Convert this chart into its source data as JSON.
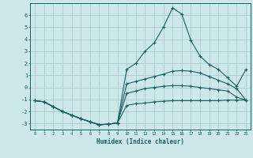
{
  "bg_color": "#cce8e8",
  "grid_color": "#aacccc",
  "line_color": "#1a6060",
  "xlabel": "Humidex (Indice chaleur)",
  "xlim": [
    -0.5,
    23.5
  ],
  "ylim": [
    -3.5,
    7.0
  ],
  "yticks": [
    -3,
    -2,
    -1,
    0,
    1,
    2,
    3,
    4,
    5,
    6
  ],
  "xticks": [
    0,
    1,
    2,
    3,
    4,
    5,
    6,
    7,
    8,
    9,
    10,
    11,
    12,
    13,
    14,
    15,
    16,
    17,
    18,
    19,
    20,
    21,
    22,
    23
  ],
  "curve1_x": [
    0,
    1,
    2,
    3,
    4,
    5,
    6,
    7,
    8,
    9,
    10,
    11,
    12,
    13,
    14,
    15,
    16,
    17,
    18,
    19,
    20,
    21,
    22,
    23
  ],
  "curve1_y": [
    -1.1,
    -1.2,
    -1.6,
    -2.0,
    -2.3,
    -2.6,
    -2.85,
    -3.1,
    -3.05,
    -2.95,
    -1.5,
    -1.35,
    -1.3,
    -1.2,
    -1.15,
    -1.1,
    -1.1,
    -1.1,
    -1.1,
    -1.1,
    -1.1,
    -1.05,
    -1.05,
    -1.05
  ],
  "curve2_x": [
    0,
    1,
    2,
    3,
    4,
    5,
    6,
    7,
    8,
    9,
    10,
    11,
    12,
    13,
    14,
    15,
    16,
    17,
    18,
    19,
    20,
    21,
    22,
    23
  ],
  "curve2_y": [
    -1.1,
    -1.2,
    -1.6,
    -2.0,
    -2.3,
    -2.6,
    -2.85,
    -3.1,
    -3.05,
    -2.95,
    -0.5,
    -0.3,
    -0.1,
    0.0,
    0.1,
    0.15,
    0.15,
    0.1,
    0.0,
    -0.1,
    -0.2,
    -0.3,
    -0.8,
    -1.05
  ],
  "curve3_x": [
    0,
    1,
    2,
    3,
    4,
    5,
    6,
    7,
    8,
    9,
    10,
    11,
    12,
    13,
    14,
    15,
    16,
    17,
    18,
    19,
    20,
    21,
    22,
    23
  ],
  "curve3_y": [
    -1.1,
    -1.2,
    -1.6,
    -2.0,
    -2.3,
    -2.6,
    -2.85,
    -3.1,
    -3.05,
    -2.95,
    0.3,
    0.5,
    0.7,
    0.9,
    1.1,
    1.35,
    1.4,
    1.35,
    1.2,
    0.9,
    0.6,
    0.3,
    -0.1,
    -1.05
  ],
  "curve4_x": [
    1,
    2,
    3,
    4,
    5,
    6,
    7,
    8,
    9,
    10,
    11,
    12,
    13,
    14,
    15,
    16,
    17,
    18,
    19,
    20,
    21,
    22,
    23
  ],
  "curve4_y": [
    -1.2,
    -1.6,
    -2.0,
    -2.3,
    -2.6,
    -2.85,
    -3.1,
    -3.05,
    -2.95,
    1.5,
    2.0,
    3.0,
    3.7,
    5.0,
    6.6,
    6.1,
    3.9,
    2.6,
    1.9,
    1.5,
    0.8,
    0.1,
    1.5
  ]
}
